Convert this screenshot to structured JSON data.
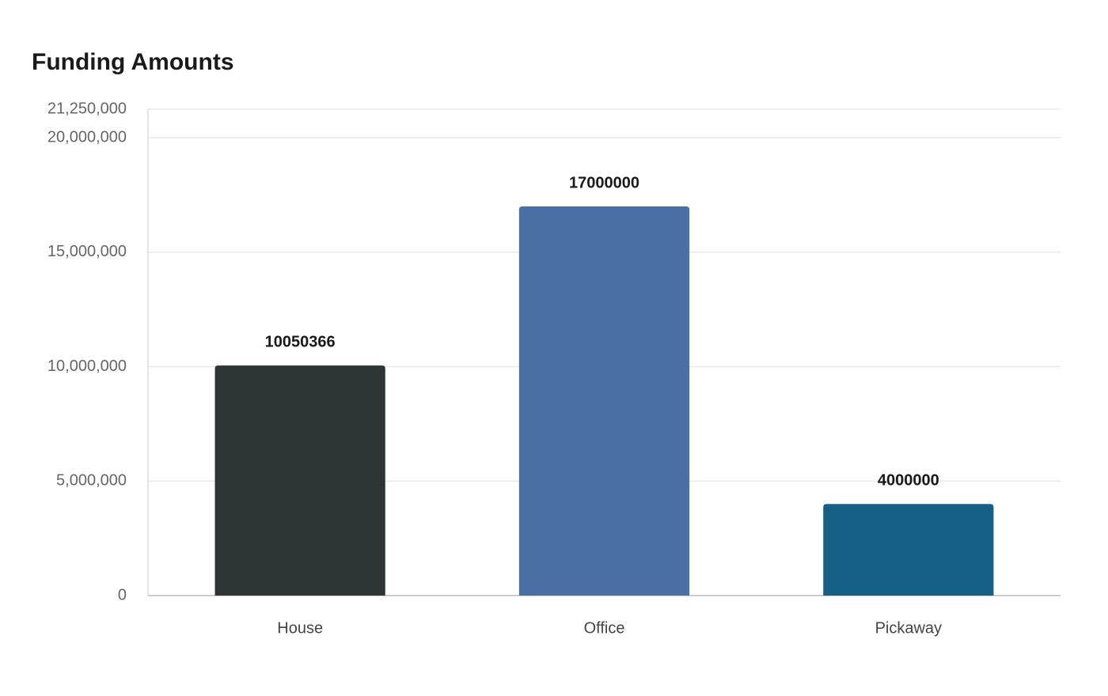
{
  "chart_data": {
    "type": "bar",
    "title": "Funding Amounts",
    "categories": [
      "House",
      "Office",
      "Pickaway"
    ],
    "values": [
      10050366,
      17000000,
      4000000
    ],
    "colors": [
      "#2d3436",
      "#4a6fa5",
      "#166088"
    ],
    "ylim": [
      0,
      21250000
    ],
    "yticks": [
      0,
      {
        "value": 5000000,
        "label": "5,000,000"
      },
      {
        "value": 10000000,
        "label": "10,000,000"
      },
      {
        "value": 15000000,
        "label": "15,000,000"
      },
      {
        "value": 20000000,
        "label": "20,000,000"
      },
      {
        "value": 21250000,
        "label": "21,250,000"
      }
    ],
    "grid": true
  }
}
